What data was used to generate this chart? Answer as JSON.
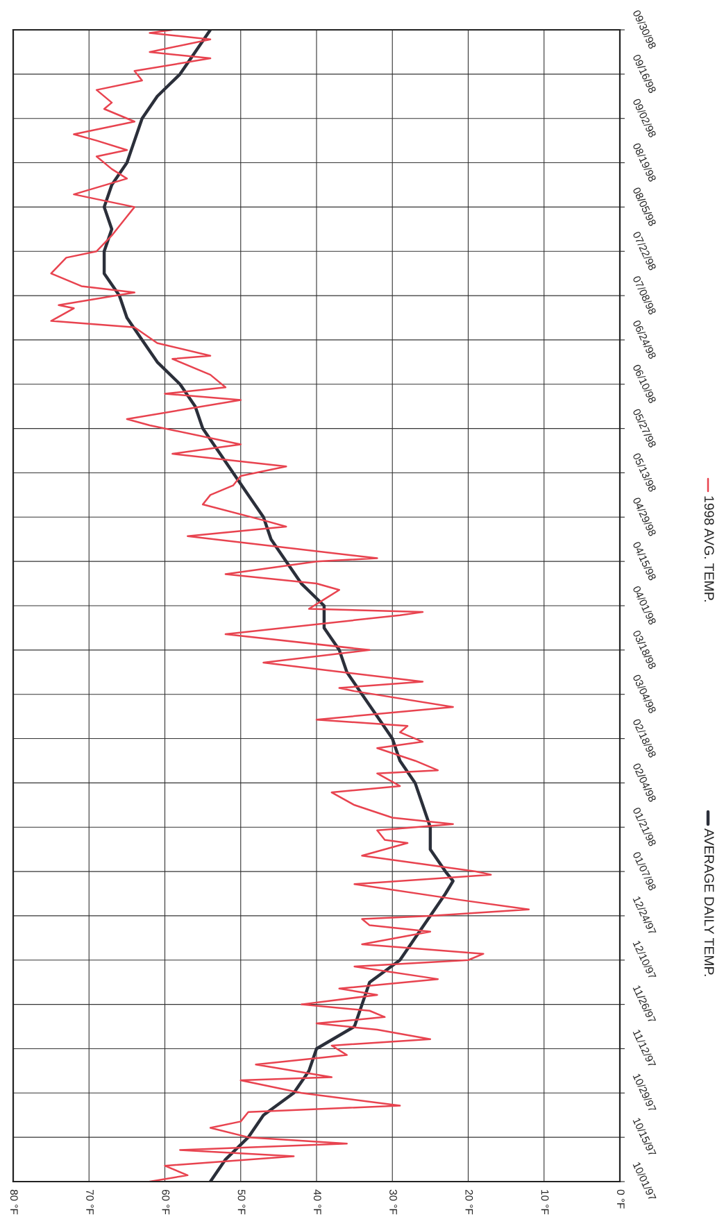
{
  "chart_data": {
    "type": "line",
    "orientation": "horizontal",
    "legend": "right",
    "grid": true,
    "xlim": [
      80,
      0
    ],
    "xticks": [
      {
        "value": 80,
        "label": "80 °F"
      },
      {
        "value": 70,
        "label": "70 °F"
      },
      {
        "value": 60,
        "label": "60 °F"
      },
      {
        "value": 50,
        "label": "50 °F"
      },
      {
        "value": 40,
        "label": "40 °F"
      },
      {
        "value": 30,
        "label": "30 °F"
      },
      {
        "value": 20,
        "label": "20 °F"
      },
      {
        "value": 10,
        "label": "10 °F"
      },
      {
        "value": 0,
        "label": "0 °F"
      }
    ],
    "ylim": [
      "1997-10-01",
      "1998-09-30"
    ],
    "yticks": [
      {
        "value": "1997-10-01",
        "label": "10/01/97"
      },
      {
        "value": "1997-10-15",
        "label": "10/15/97"
      },
      {
        "value": "1997-10-29",
        "label": "10/29/97"
      },
      {
        "value": "1997-11-12",
        "label": "11/12/97"
      },
      {
        "value": "1997-11-26",
        "label": "11/26/97"
      },
      {
        "value": "1997-12-10",
        "label": "12/10/97"
      },
      {
        "value": "1997-12-24",
        "label": "12/24/97"
      },
      {
        "value": "1998-01-07",
        "label": "01/07/98"
      },
      {
        "value": "1998-01-21",
        "label": "01/21/98"
      },
      {
        "value": "1998-02-04",
        "label": "02/04/98"
      },
      {
        "value": "1998-02-18",
        "label": "02/18/98"
      },
      {
        "value": "1998-03-04",
        "label": "03/04/98"
      },
      {
        "value": "1998-03-18",
        "label": "03/18/98"
      },
      {
        "value": "1998-04-01",
        "label": "04/01/98"
      },
      {
        "value": "1998-04-15",
        "label": "04/15/98"
      },
      {
        "value": "1998-04-29",
        "label": "04/29/98"
      },
      {
        "value": "1998-05-13",
        "label": "05/13/98"
      },
      {
        "value": "1998-05-27",
        "label": "05/27/98"
      },
      {
        "value": "1998-06-10",
        "label": "06/10/98"
      },
      {
        "value": "1998-06-24",
        "label": "06/24/98"
      },
      {
        "value": "1998-07-08",
        "label": "07/08/98"
      },
      {
        "value": "1998-07-22",
        "label": "07/22/98"
      },
      {
        "value": "1998-08-05",
        "label": "08/05/98"
      },
      {
        "value": "1998-08-19",
        "label": "08/19/98"
      },
      {
        "value": "1998-09-02",
        "label": "09/02/98"
      },
      {
        "value": "1998-09-16",
        "label": "09/16/98"
      },
      {
        "value": "1998-09-30",
        "label": "09/30/98"
      }
    ],
    "series": [
      {
        "name": "AVERAGE DAILY TEMP.",
        "color": "#2b2f3a",
        "x": [
          "1997-10-01",
          "1997-10-08",
          "1997-10-15",
          "1997-10-22",
          "1997-10-29",
          "1997-11-05",
          "1997-11-12",
          "1997-11-19",
          "1997-11-26",
          "1997-12-03",
          "1997-12-10",
          "1997-12-17",
          "1997-12-24",
          "1997-12-31",
          "1998-01-04",
          "1998-01-07",
          "1998-01-14",
          "1998-01-21",
          "1998-01-28",
          "1998-02-04",
          "1998-02-11",
          "1998-02-18",
          "1998-02-25",
          "1998-03-04",
          "1998-03-11",
          "1998-03-18",
          "1998-03-25",
          "1998-04-01",
          "1998-04-08",
          "1998-04-15",
          "1998-04-22",
          "1998-04-29",
          "1998-05-06",
          "1998-05-13",
          "1998-05-20",
          "1998-05-27",
          "1998-06-03",
          "1998-06-10",
          "1998-06-17",
          "1998-06-24",
          "1998-07-01",
          "1998-07-08",
          "1998-07-15",
          "1998-07-22",
          "1998-07-29",
          "1998-08-05",
          "1998-08-12",
          "1998-08-19",
          "1998-08-26",
          "1998-09-02",
          "1998-09-09",
          "1998-09-16",
          "1998-09-23",
          "1998-09-30"
        ],
        "values": [
          54,
          52,
          49,
          47,
          43,
          41,
          40,
          35,
          34,
          33,
          29,
          27,
          25,
          23,
          22,
          23,
          25,
          25,
          26,
          27,
          29,
          30,
          32,
          34,
          36,
          37,
          39,
          39,
          42,
          44,
          46,
          47,
          49,
          51,
          53,
          55,
          56,
          58,
          61,
          63,
          65,
          66,
          68,
          68,
          67,
          68,
          67,
          65,
          64,
          63,
          61,
          58,
          56,
          54
        ]
      },
      {
        "name": "1998 AVG. TEMP.",
        "color": "#e8434f",
        "x": [
          "1997-10-01",
          "1997-10-03",
          "1997-10-06",
          "1997-10-09",
          "1997-10-11",
          "1997-10-13",
          "1997-10-15",
          "1997-10-18",
          "1997-10-20",
          "1997-10-23",
          "1997-10-25",
          "1997-10-29",
          "1997-11-02",
          "1997-11-03",
          "1997-11-07",
          "1997-11-10",
          "1997-11-13",
          "1997-11-15",
          "1997-11-18",
          "1997-11-20",
          "1997-11-22",
          "1997-11-24",
          "1997-11-26",
          "1997-11-29",
          "1997-12-01",
          "1997-12-04",
          "1997-12-08",
          "1997-12-10",
          "1997-12-12",
          "1997-12-15",
          "1997-12-19",
          "1997-12-21",
          "1997-12-23",
          "1997-12-24",
          "1997-12-26",
          "1997-12-29",
          "1998-01-03",
          "1998-01-06",
          "1998-01-07",
          "1998-01-12",
          "1998-01-16",
          "1998-01-17",
          "1998-01-20",
          "1998-01-22",
          "1998-01-24",
          "1998-01-28",
          "1998-02-01",
          "1998-02-03",
          "1998-02-07",
          "1998-02-08",
          "1998-02-11",
          "1998-02-15",
          "1998-02-17",
          "1998-02-20",
          "1998-02-22",
          "1998-02-24",
          "1998-02-28",
          "1998-03-05",
          "1998-03-06",
          "1998-03-08",
          "1998-03-14",
          "1998-03-18",
          "1998-03-23",
          "1998-03-29",
          "1998-03-30",
          "1998-03-31",
          "1998-04-03",
          "1998-04-06",
          "1998-04-08",
          "1998-04-11",
          "1998-04-15",
          "1998-04-16",
          "1998-04-23",
          "1998-04-26",
          "1998-04-28",
          "1998-05-03",
          "1998-05-06",
          "1998-05-09",
          "1998-05-12",
          "1998-05-15",
          "1998-05-19",
          "1998-05-22",
          "1998-05-28",
          "1998-05-30",
          "1998-06-05",
          "1998-06-07",
          "1998-06-09",
          "1998-06-13",
          "1998-06-18",
          "1998-06-19",
          "1998-06-23",
          "1998-06-28",
          "1998-06-30",
          "1998-07-04",
          "1998-07-05",
          "1998-07-09",
          "1998-07-11",
          "1998-07-15",
          "1998-07-20",
          "1998-07-22",
          "1998-07-27",
          "1998-07-30",
          "1998-08-02",
          "1998-08-05",
          "1998-08-09",
          "1998-08-14",
          "1998-08-17",
          "1998-08-21",
          "1998-08-23",
          "1998-08-26",
          "1998-08-28",
          "1998-09-01",
          "1998-09-05",
          "1998-09-07",
          "1998-09-11",
          "1998-09-14",
          "1998-09-17",
          "1998-09-21",
          "1998-09-23",
          "1998-09-27",
          "1998-09-29",
          "1998-09-30"
        ],
        "values": [
          62,
          57,
          60,
          43,
          58,
          36,
          49,
          54,
          50,
          49,
          29,
          42,
          50,
          38,
          48,
          36,
          38,
          25,
          32,
          40,
          31,
          33,
          42,
          32,
          37,
          24,
          35,
          20,
          18,
          34,
          25,
          33,
          34,
          25,
          12,
          21,
          35,
          17,
          19,
          34,
          28,
          31,
          32,
          22,
          30,
          35,
          38,
          29,
          32,
          24,
          27,
          32,
          26,
          29,
          28,
          40,
          22,
          35,
          37,
          26,
          47,
          33,
          52,
          29,
          26,
          41,
          39,
          37,
          40,
          52,
          40,
          32,
          57,
          44,
          47,
          55,
          54,
          51,
          50,
          44,
          59,
          50,
          62,
          65,
          50,
          60,
          52,
          54,
          59,
          54,
          61,
          64,
          75,
          72,
          74,
          64,
          71,
          75,
          73,
          69,
          67,
          66,
          65,
          64,
          72,
          65,
          67,
          69,
          65,
          69,
          72,
          64,
          68,
          67,
          69,
          63,
          64,
          54,
          62,
          54,
          62,
          59
        ]
      }
    ]
  }
}
